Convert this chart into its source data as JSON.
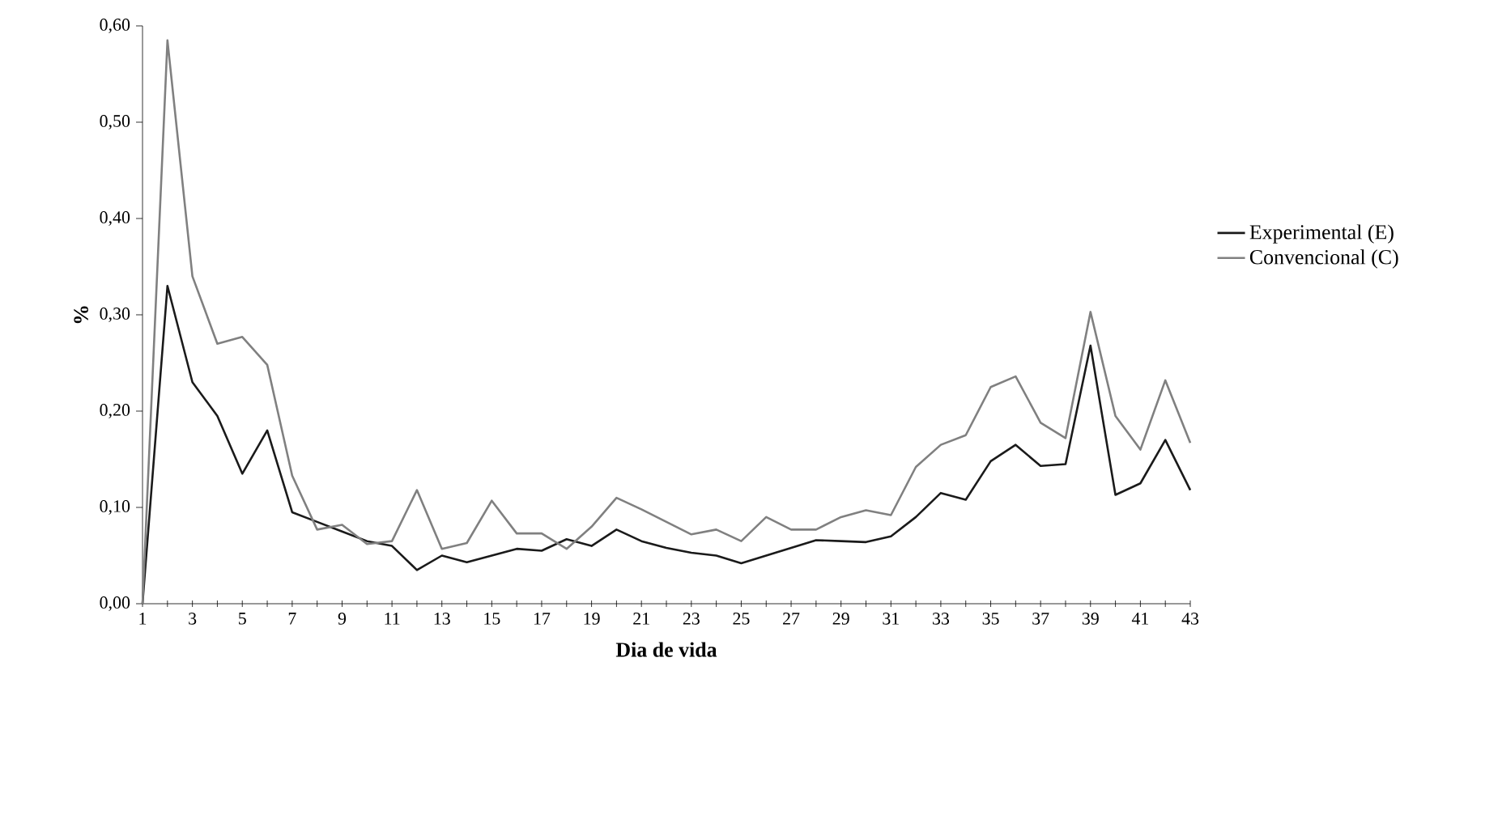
{
  "chart_data": {
    "type": "line",
    "xlabel": "Dia de vida",
    "ylabel": "%",
    "x": [
      1,
      2,
      3,
      4,
      5,
      6,
      7,
      8,
      9,
      10,
      11,
      12,
      13,
      14,
      15,
      16,
      17,
      18,
      19,
      20,
      21,
      22,
      23,
      24,
      25,
      26,
      27,
      28,
      29,
      30,
      31,
      32,
      33,
      34,
      35,
      36,
      37,
      38,
      39,
      40,
      41,
      42,
      43
    ],
    "series": [
      {
        "name": "Experimental (E)",
        "color": "#1a1a1a",
        "values": [
          0.0,
          0.33,
          0.23,
          0.195,
          0.135,
          0.18,
          0.095,
          0.085,
          0.075,
          0.065,
          0.06,
          0.035,
          0.05,
          0.043,
          0.05,
          0.057,
          0.055,
          0.067,
          0.06,
          0.077,
          0.065,
          0.058,
          0.053,
          0.05,
          0.042,
          0.05,
          0.058,
          0.066,
          0.065,
          0.064,
          0.07,
          0.09,
          0.115,
          0.108,
          0.148,
          0.165,
          0.143,
          0.145,
          0.268,
          0.113,
          0.125,
          0.17,
          0.118
        ]
      },
      {
        "name": "Convencional (C)",
        "color": "#808080",
        "values": [
          0.0,
          0.585,
          0.34,
          0.27,
          0.277,
          0.248,
          0.133,
          0.077,
          0.082,
          0.062,
          0.065,
          0.118,
          0.057,
          0.063,
          0.107,
          0.073,
          0.073,
          0.057,
          0.08,
          0.11,
          0.098,
          0.085,
          0.072,
          0.077,
          0.065,
          0.09,
          0.077,
          0.077,
          0.09,
          0.097,
          0.092,
          0.142,
          0.165,
          0.175,
          0.225,
          0.236,
          0.188,
          0.172,
          0.303,
          0.195,
          0.16,
          0.232,
          0.167
        ]
      }
    ],
    "xlim": [
      1,
      43
    ],
    "xticks": [
      1,
      {
        "value": 2,
        "label": null
      },
      3,
      {
        "value": 4,
        "label": null
      },
      5,
      {
        "value": 6,
        "label": null
      },
      7,
      {
        "value": 8,
        "label": null
      },
      9,
      {
        "value": 10,
        "label": null
      },
      11,
      {
        "value": 12,
        "label": null
      },
      13,
      {
        "value": 14,
        "label": null
      },
      15,
      {
        "value": 16,
        "label": null
      },
      17,
      {
        "value": 18,
        "label": null
      },
      19,
      {
        "value": 20,
        "label": null
      },
      21,
      {
        "value": 22,
        "label": null
      },
      23,
      {
        "value": 24,
        "label": null
      },
      25,
      {
        "value": 26,
        "label": null
      },
      27,
      {
        "value": 28,
        "label": null
      },
      29,
      {
        "value": 30,
        "label": null
      },
      31,
      {
        "value": 32,
        "label": null
      },
      33,
      {
        "value": 34,
        "label": null
      },
      35,
      {
        "value": 36,
        "label": null
      },
      37,
      {
        "value": 38,
        "label": null
      },
      39,
      {
        "value": 40,
        "label": null
      },
      41,
      {
        "value": 42,
        "label": null
      },
      43
    ],
    "ylim": [
      0,
      0.6
    ],
    "yticks": [
      {
        "value": 0,
        "label": "0,00"
      },
      {
        "value": 0.1,
        "label": "0,10"
      },
      {
        "value": 0.2,
        "label": "0,20"
      },
      {
        "value": 0.3,
        "label": "0,30"
      },
      {
        "value": 0.4,
        "label": "0,40"
      },
      {
        "value": 0.5,
        "label": "0,50"
      },
      {
        "value": 0.6,
        "label": "0,60"
      }
    ],
    "legend": "right",
    "grid": false,
    "marker": "none",
    "line_style": "solid"
  }
}
